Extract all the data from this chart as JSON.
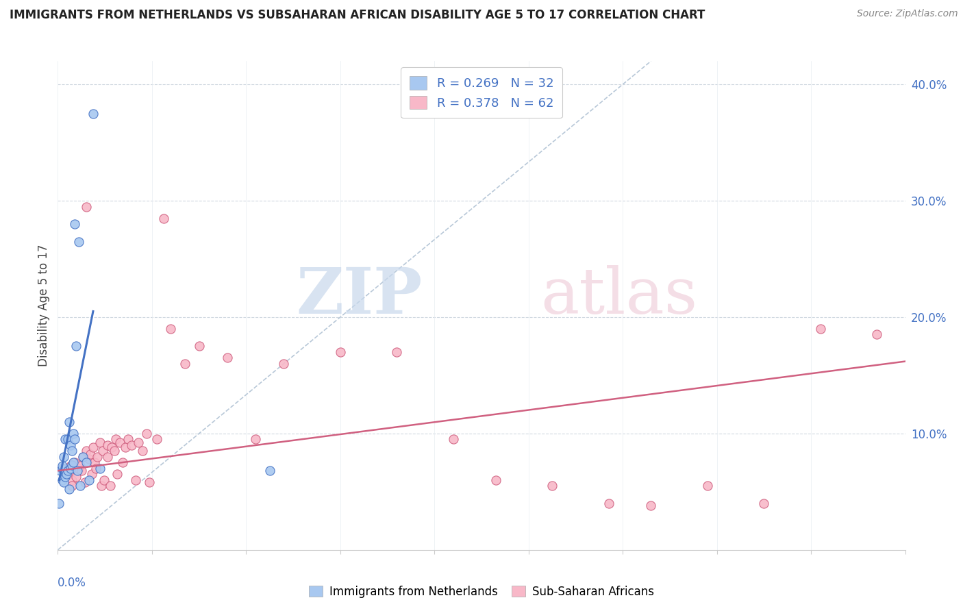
{
  "title": "IMMIGRANTS FROM NETHERLANDS VS SUBSAHARAN AFRICAN DISABILITY AGE 5 TO 17 CORRELATION CHART",
  "source": "Source: ZipAtlas.com",
  "ylabel": "Disability Age 5 to 17",
  "legend_r1": "R = 0.269",
  "legend_n1": "N = 32",
  "legend_r2": "R = 0.378",
  "legend_n2": "N = 62",
  "blue_color": "#a8c8f0",
  "pink_color": "#f8b8c8",
  "blue_line_color": "#4472c4",
  "pink_line_color": "#d06080",
  "diag_line_color": "#b8c8d8",
  "xlim": [
    0.0,
    0.6
  ],
  "ylim": [
    0.0,
    0.42
  ],
  "blue_scatter_x": [
    0.001,
    0.002,
    0.003,
    0.003,
    0.003,
    0.004,
    0.004,
    0.005,
    0.005,
    0.006,
    0.007,
    0.007,
    0.008,
    0.008,
    0.009,
    0.009,
    0.01,
    0.01,
    0.011,
    0.011,
    0.012,
    0.012,
    0.013,
    0.014,
    0.015,
    0.016,
    0.018,
    0.02,
    0.022,
    0.025,
    0.03,
    0.15
  ],
  "blue_scatter_y": [
    0.04,
    0.068,
    0.06,
    0.07,
    0.072,
    0.058,
    0.08,
    0.063,
    0.095,
    0.065,
    0.068,
    0.095,
    0.052,
    0.11,
    0.07,
    0.09,
    0.073,
    0.085,
    0.075,
    0.1,
    0.095,
    0.28,
    0.175,
    0.068,
    0.265,
    0.055,
    0.08,
    0.075,
    0.06,
    0.375,
    0.07,
    0.068
  ],
  "blue_trend_x": [
    0.001,
    0.025
  ],
  "blue_trend_y": [
    0.06,
    0.205
  ],
  "pink_scatter_x": [
    0.004,
    0.006,
    0.008,
    0.009,
    0.01,
    0.01,
    0.012,
    0.013,
    0.015,
    0.016,
    0.017,
    0.018,
    0.019,
    0.02,
    0.02,
    0.022,
    0.023,
    0.024,
    0.025,
    0.026,
    0.027,
    0.028,
    0.03,
    0.031,
    0.032,
    0.033,
    0.035,
    0.035,
    0.037,
    0.038,
    0.04,
    0.041,
    0.042,
    0.044,
    0.046,
    0.048,
    0.05,
    0.052,
    0.055,
    0.057,
    0.06,
    0.063,
    0.065,
    0.07,
    0.075,
    0.08,
    0.09,
    0.1,
    0.12,
    0.14,
    0.16,
    0.2,
    0.24,
    0.28,
    0.31,
    0.35,
    0.39,
    0.42,
    0.46,
    0.5,
    0.54,
    0.58
  ],
  "pink_scatter_y": [
    0.068,
    0.07,
    0.065,
    0.072,
    0.06,
    0.055,
    0.075,
    0.063,
    0.07,
    0.072,
    0.068,
    0.08,
    0.058,
    0.085,
    0.295,
    0.078,
    0.082,
    0.065,
    0.088,
    0.075,
    0.07,
    0.08,
    0.092,
    0.055,
    0.085,
    0.06,
    0.09,
    0.08,
    0.055,
    0.088,
    0.085,
    0.095,
    0.065,
    0.092,
    0.075,
    0.088,
    0.095,
    0.09,
    0.06,
    0.092,
    0.085,
    0.1,
    0.058,
    0.095,
    0.285,
    0.19,
    0.16,
    0.175,
    0.165,
    0.095,
    0.16,
    0.17,
    0.17,
    0.095,
    0.06,
    0.055,
    0.04,
    0.038,
    0.055,
    0.04,
    0.19,
    0.185
  ],
  "pink_trend_x": [
    0.0,
    0.6
  ],
  "pink_trend_y": [
    0.068,
    0.162
  ]
}
